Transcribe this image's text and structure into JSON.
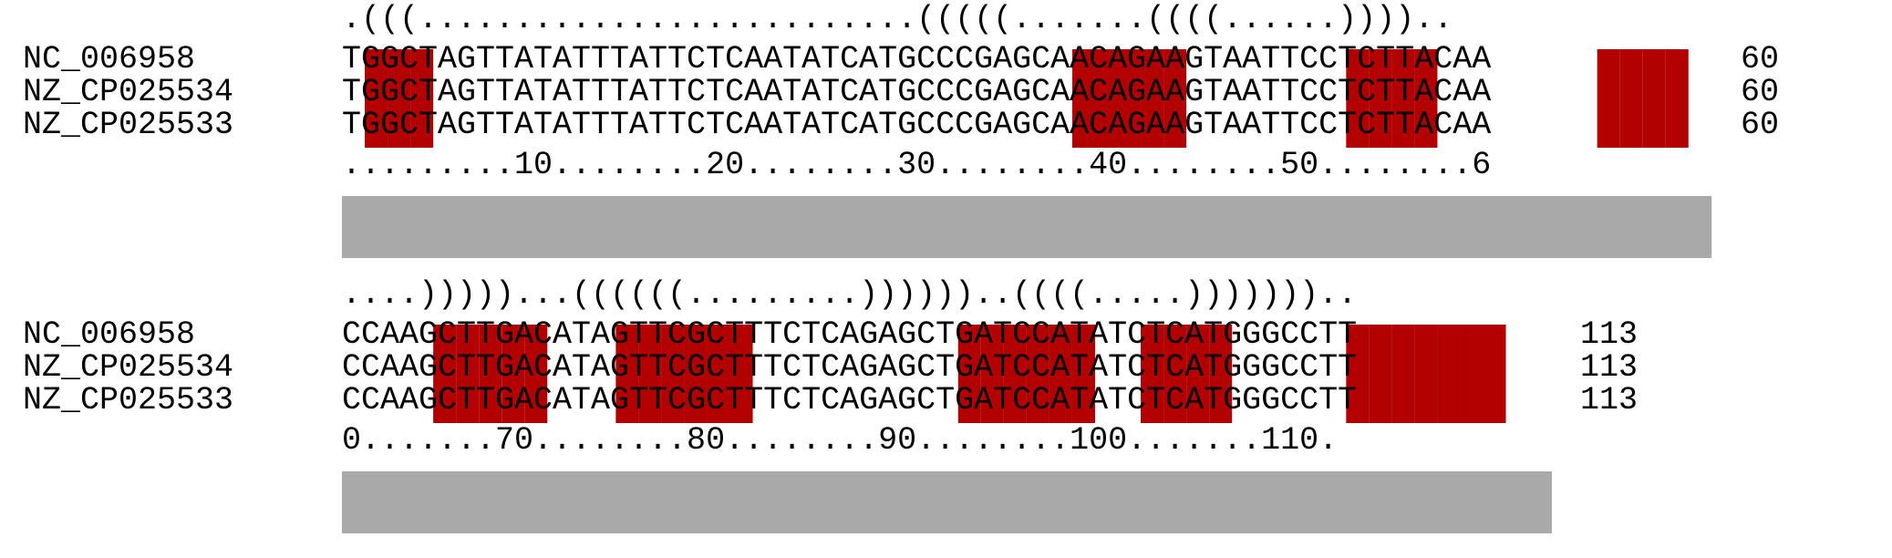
{
  "colors": {
    "pair_highlight": "#b30000",
    "conservation_bar": "#a9a9a9",
    "text": "#000000",
    "background": "#ffffff"
  },
  "blocks": [
    {
      "structure": ".(((..........................(((((.......((((......)))).. ",
      "rows": [
        {
          "name": "NC_006958",
          "sequence": "TGGCTAGTTATATTTATTCTCAATATCATGCCCGAGCAACAGAAGTAATTCCTCTTACAA",
          "end": "60"
        },
        {
          "name": "NZ_CP025534",
          "sequence": "TGGCTAGTTATATTTATTCTCAATATCATGCCCGAGCAACAGAAGTAATTCCTCTTACAA",
          "end": "60"
        },
        {
          "name": "NZ_CP025533",
          "sequence": "TGGCTAGTTATATTTATTCTCAATATCATGCCCGAGCAACAGAAGTAATTCCTCTTACAA",
          "end": "60"
        }
      ],
      "ruler": ".........10........20........30........40........50........6",
      "highlight_columns": [
        1,
        2,
        3,
        32,
        33,
        34,
        35,
        36,
        44,
        45,
        46,
        47,
        55,
        56,
        57,
        58
      ],
      "conservation": [
        1,
        1,
        1,
        1,
        1,
        1,
        1,
        1,
        1,
        1,
        1,
        1,
        1,
        1,
        1,
        1,
        1,
        1,
        1,
        1,
        1,
        1,
        1,
        1,
        1,
        1,
        1,
        1,
        1,
        1,
        1,
        1,
        1,
        1,
        1,
        1,
        1,
        1,
        1,
        1,
        1,
        1,
        1,
        1,
        1,
        1,
        1,
        1,
        1,
        1,
        1,
        1,
        1,
        1,
        1,
        1,
        1,
        1,
        1,
        1
      ]
    },
    {
      "structure": "....)))))...((((((.........))))))..((((.....)))))))..",
      "rows": [
        {
          "name": "NC_006958",
          "sequence": "CCAAGCTTGACATAGTTCGCTTTCTCAGAGCTGATCCATATCTCATGGGCCTT",
          "end": "113"
        },
        {
          "name": "NZ_CP025534",
          "sequence": "CCAAGCTTGACATAGTTCGCTTTCTCAGAGCTGATCCATATCTCATGGGCCTT",
          "end": "113"
        },
        {
          "name": "NZ_CP025533",
          "sequence": "CCAAGCTTGACATAGTTCGCTTTCTCAGAGCTGATCCATATCTCATGGGCCTT",
          "end": "113"
        }
      ],
      "ruler": "0.......70........80........90........100.......110.",
      "highlight_columns": [
        4,
        5,
        6,
        7,
        8,
        12,
        13,
        14,
        15,
        16,
        17,
        27,
        28,
        29,
        30,
        31,
        32,
        35,
        36,
        37,
        38,
        44,
        45,
        46,
        47,
        48,
        49,
        50
      ],
      "conservation": [
        1,
        1,
        1,
        1,
        1,
        1,
        1,
        1,
        1,
        1,
        1,
        1,
        1,
        1,
        1,
        1,
        1,
        1,
        1,
        1,
        1,
        1,
        1,
        1,
        1,
        1,
        1,
        1,
        1,
        1,
        1,
        1,
        1,
        1,
        1,
        1,
        1,
        1,
        1,
        1,
        1,
        1,
        1,
        1,
        1,
        1,
        1,
        1,
        1,
        1,
        1,
        1,
        1
      ]
    }
  ]
}
